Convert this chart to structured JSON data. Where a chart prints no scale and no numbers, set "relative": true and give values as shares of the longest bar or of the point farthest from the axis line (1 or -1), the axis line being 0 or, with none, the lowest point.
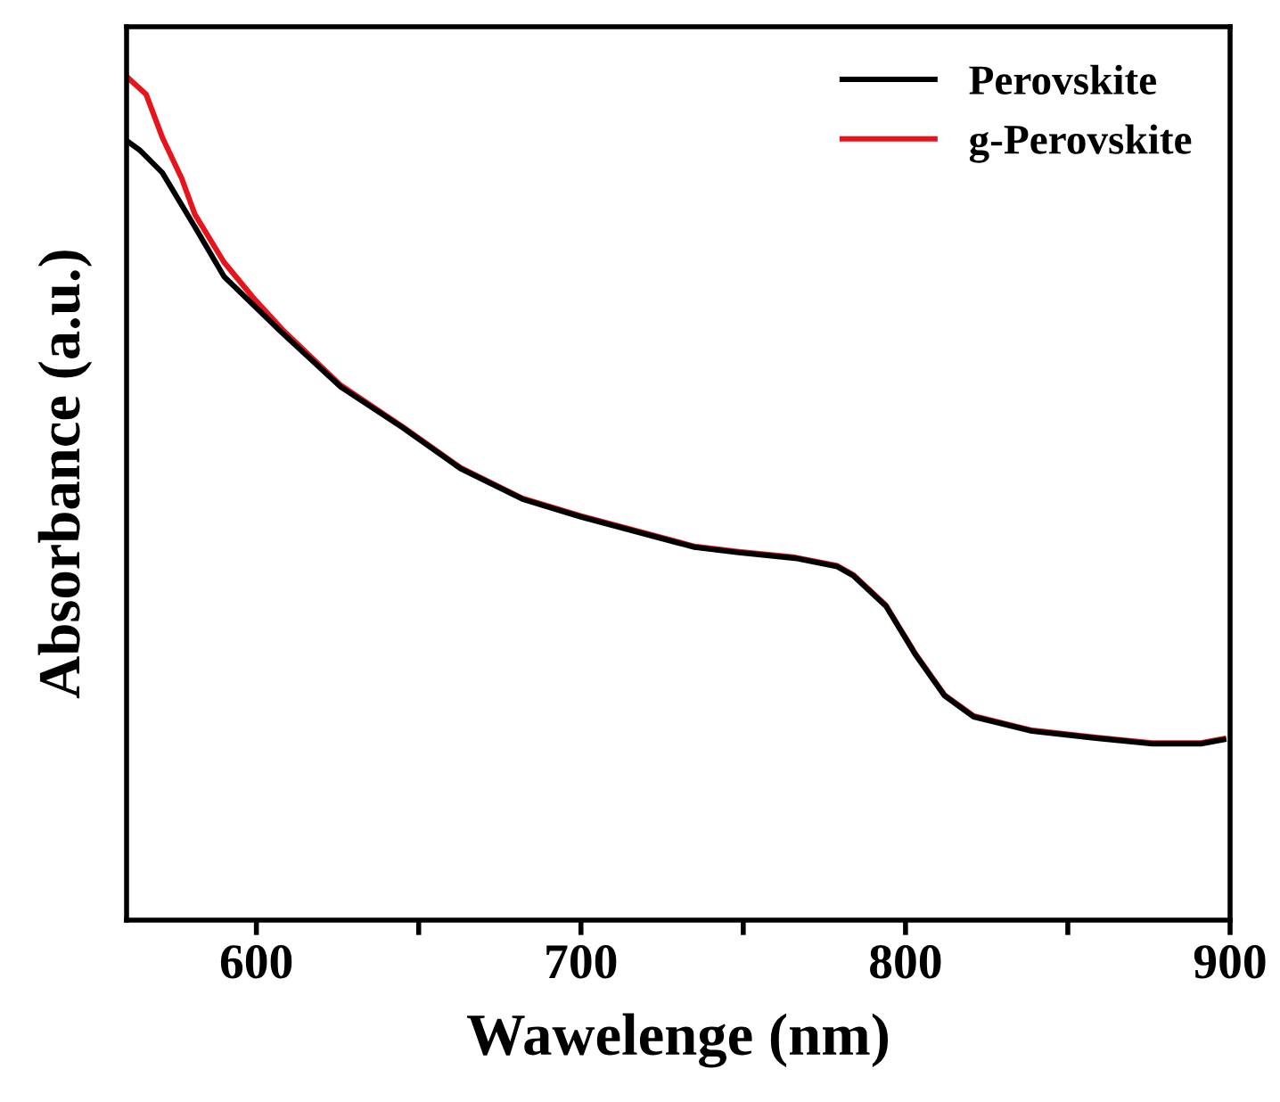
{
  "chart_data": {
    "type": "line",
    "xlabel": "Wawelenge (nm)",
    "ylabel": "Absorbance (a.u.)",
    "relative": true,
    "xlim": [
      560,
      900
    ],
    "xticks": [
      {
        "value": 600,
        "label": "600"
      },
      {
        "value": 650,
        "label": null
      },
      {
        "value": 700,
        "label": "700"
      },
      {
        "value": 750,
        "label": null
      },
      {
        "value": 800,
        "label": "800"
      },
      {
        "value": 850,
        "label": null
      },
      {
        "value": 900,
        "label": "900"
      }
    ],
    "legend": "top right",
    "grid": false,
    "tick_labels": "x",
    "series": [
      {
        "name": "Perovskite",
        "color": "#000000",
        "x": [
          560,
          564,
          571,
          581,
          590,
          608,
          626,
          645,
          663,
          682,
          700,
          735,
          748,
          766,
          779,
          784,
          794,
          803,
          812,
          821,
          839,
          858,
          876,
          891,
          898
        ],
        "values": [
          0.924,
          0.913,
          0.886,
          0.822,
          0.763,
          0.696,
          0.632,
          0.584,
          0.535,
          0.499,
          0.478,
          0.442,
          0.436,
          0.429,
          0.419,
          0.408,
          0.372,
          0.315,
          0.266,
          0.241,
          0.224,
          0.216,
          0.209,
          0.209,
          0.214
        ]
      },
      {
        "name": "g-Perovskite",
        "color": "#e8141b",
        "x": [
          560,
          566,
          571,
          577,
          581,
          590,
          599,
          608,
          626,
          645,
          663,
          682,
          700,
          735,
          748,
          766,
          779,
          784,
          794,
          803,
          812,
          821,
          839,
          858,
          876,
          891,
          898
        ],
        "values": [
          1.0,
          0.979,
          0.928,
          0.879,
          0.837,
          0.78,
          0.738,
          0.7,
          0.634,
          0.585,
          0.536,
          0.5,
          0.479,
          0.443,
          0.437,
          0.43,
          0.42,
          0.409,
          0.373,
          0.316,
          0.267,
          0.242,
          0.225,
          0.217,
          0.21,
          0.21,
          0.215
        ]
      }
    ]
  }
}
